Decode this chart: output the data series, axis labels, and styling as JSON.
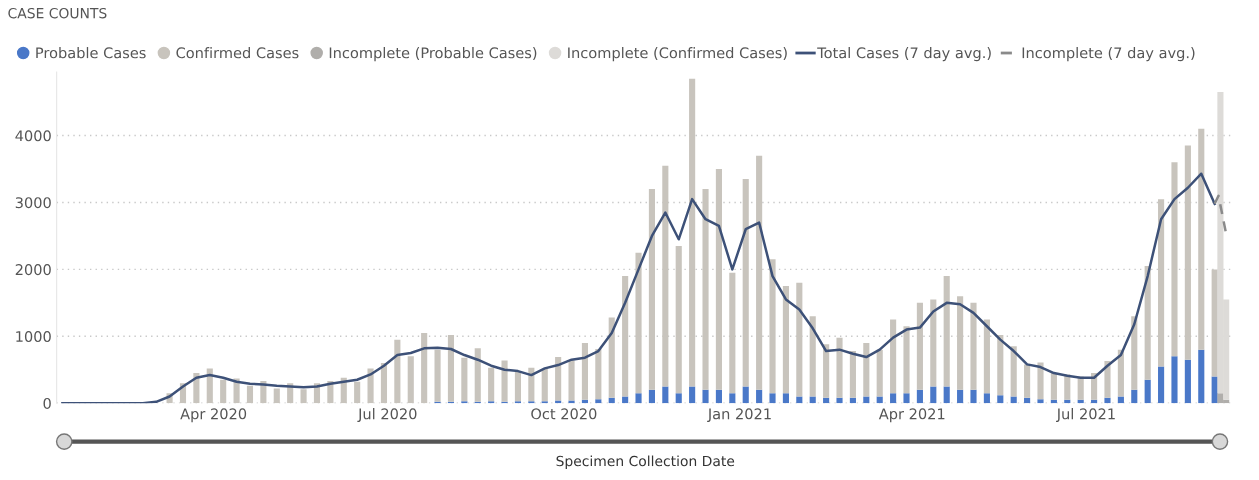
{
  "chart_data": {
    "type": "bar",
    "title": "CASE COUNTS",
    "xlabel": "Specimen Collection Date",
    "stacked": true,
    "x": [
      "2020-01-13",
      "2020-01-20",
      "2020-01-27",
      "2020-02-03",
      "2020-02-10",
      "2020-02-17",
      "2020-02-24",
      "2020-03-02",
      "2020-03-09",
      "2020-03-16",
      "2020-03-23",
      "2020-03-30",
      "2020-04-06",
      "2020-04-13",
      "2020-04-20",
      "2020-04-27",
      "2020-05-04",
      "2020-05-11",
      "2020-05-18",
      "2020-05-25",
      "2020-06-01",
      "2020-06-08",
      "2020-06-15",
      "2020-06-22",
      "2020-06-29",
      "2020-07-06",
      "2020-07-13",
      "2020-07-20",
      "2020-07-27",
      "2020-08-03",
      "2020-08-10",
      "2020-08-17",
      "2020-08-24",
      "2020-08-31",
      "2020-09-07",
      "2020-09-14",
      "2020-09-21",
      "2020-09-28",
      "2020-10-05",
      "2020-10-12",
      "2020-10-19",
      "2020-10-26",
      "2020-11-02",
      "2020-11-09",
      "2020-11-16",
      "2020-11-23",
      "2020-11-30",
      "2020-12-07",
      "2020-12-14",
      "2020-12-21",
      "2020-12-28",
      "2021-01-04",
      "2021-01-11",
      "2021-01-18",
      "2021-01-25",
      "2021-02-01",
      "2021-02-08",
      "2021-02-15",
      "2021-02-22",
      "2021-03-01",
      "2021-03-08",
      "2021-03-15",
      "2021-03-22",
      "2021-03-29",
      "2021-04-05",
      "2021-04-12",
      "2021-04-19",
      "2021-04-26",
      "2021-05-03",
      "2021-05-10",
      "2021-05-17",
      "2021-05-24",
      "2021-05-31",
      "2021-06-07",
      "2021-06-14",
      "2021-06-21",
      "2021-06-28",
      "2021-07-05",
      "2021-07-12",
      "2021-07-19",
      "2021-07-26",
      "2021-08-02",
      "2021-08-09",
      "2021-08-16",
      "2021-08-23",
      "2021-08-30",
      "2021-09-06"
    ],
    "series": [
      {
        "name": "Probable Cases",
        "color": "#4a78c8",
        "values": [
          0,
          0,
          0,
          0,
          0,
          0,
          0,
          0,
          0,
          0,
          0,
          0,
          0,
          0,
          0,
          0,
          0,
          0,
          0,
          0,
          0,
          0,
          0,
          0,
          0,
          0,
          0,
          0,
          20,
          20,
          30,
          20,
          30,
          20,
          30,
          30,
          30,
          40,
          40,
          50,
          60,
          80,
          100,
          150,
          200,
          250,
          150,
          250,
          200,
          200,
          150,
          250,
          200,
          150,
          150,
          100,
          100,
          80,
          80,
          80,
          100,
          100,
          150,
          150,
          200,
          250,
          250,
          200,
          200,
          150,
          120,
          100,
          80,
          60,
          50,
          50,
          50,
          50,
          80,
          100,
          200,
          350,
          550,
          700,
          650,
          800,
          400
        ]
      },
      {
        "name": "Confirmed Cases",
        "color": "#c8c4bd",
        "values": [
          0,
          0,
          0,
          0,
          0,
          0,
          0,
          null,
          150,
          300,
          450,
          520,
          350,
          370,
          260,
          330,
          220,
          300,
          210,
          300,
          330,
          380,
          320,
          520,
          600,
          950,
          700,
          1050,
          780,
          1000,
          650,
          800,
          500,
          620,
          450,
          500,
          480,
          650,
          600,
          850,
          750,
          1200,
          1800,
          2100,
          3000,
          3300,
          2200,
          4600,
          3000,
          3300,
          1800,
          3100,
          3500,
          2000,
          1600,
          1700,
          1200,
          800,
          900,
          700,
          800,
          700,
          1100,
          1000,
          1300,
          1300,
          1650,
          1400,
          1300,
          1100,
          900,
          750,
          500,
          550,
          400,
          380,
          350,
          400,
          550,
          700,
          1100,
          1700,
          2500,
          2900,
          3200,
          3300,
          1600
        ]
      },
      {
        "name": "Incomplete (Probable Cases)",
        "color": "#b0aeab",
        "x": [
          "2021-09-09",
          "2021-09-12"
        ],
        "values": [
          150,
          50
        ]
      },
      {
        "name": "Incomplete (Confirmed Cases)",
        "color": "#dddbd8",
        "x": [
          "2021-09-09",
          "2021-09-12"
        ],
        "values": [
          4500,
          1500
        ]
      },
      {
        "name": "Total Cases (7 day avg.)",
        "type": "line",
        "color": "#3d5178",
        "line_style": "solid",
        "values": [
          0,
          0,
          0,
          0,
          0,
          0,
          0,
          20,
          100,
          250,
          380,
          420,
          380,
          320,
          290,
          280,
          260,
          250,
          240,
          250,
          290,
          320,
          350,
          430,
          560,
          720,
          750,
          820,
          830,
          810,
          720,
          650,
          560,
          500,
          480,
          420,
          520,
          570,
          650,
          680,
          780,
          1050,
          1500,
          2000,
          2500,
          2850,
          2450,
          3050,
          2750,
          2650,
          2000,
          2600,
          2700,
          1900,
          1550,
          1400,
          1120,
          780,
          800,
          740,
          690,
          800,
          980,
          1100,
          1130,
          1370,
          1500,
          1480,
          1350,
          1150,
          950,
          780,
          580,
          540,
          450,
          410,
          380,
          380,
          560,
          720,
          1180,
          1900,
          2750,
          3050,
          3220,
          3430,
          2980
        ]
      },
      {
        "name": "Incomplete (7 day avg.)",
        "type": "line",
        "color": "#8a8a8a",
        "line_style": "dashed",
        "x": [
          "2021-09-06",
          "2021-09-08",
          "2021-09-12"
        ],
        "values": [
          2980,
          3100,
          2530
        ]
      }
    ],
    "xlim": [
      "2020-01-10",
      "2021-09-16"
    ],
    "xticks": [
      {
        "value": "2020-04-01",
        "label": "Apr 2020"
      },
      {
        "value": "2020-07-01",
        "label": "Jul 2020"
      },
      {
        "value": "2020-10-01",
        "label": "Oct 2020"
      },
      {
        "value": "2021-01-01",
        "label": "Jan 2021"
      },
      {
        "value": "2021-04-01",
        "label": "Apr 2021"
      },
      {
        "value": "2021-07-01",
        "label": "Jul 2021"
      }
    ],
    "ylim": [
      0,
      4950
    ],
    "yticks": [
      0,
      1000,
      2000,
      3000,
      4000
    ],
    "grid": "y",
    "legend": "top left"
  }
}
